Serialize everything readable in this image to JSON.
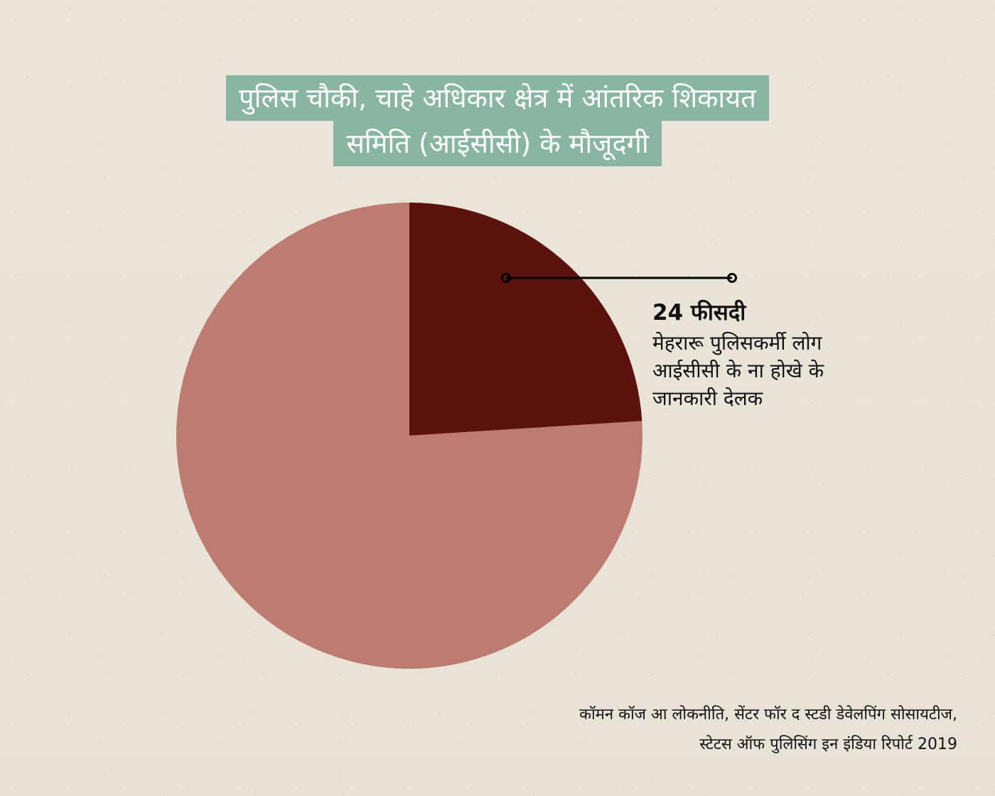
{
  "title": {
    "line1": "पुलिस चौकी, चाहे अधिकार क्षेत्र में आंतरिक शिकायत",
    "line2": "समिति (आईसीसी) के मौजूदगी"
  },
  "chart_data": {
    "type": "pie",
    "title": "पुलिस चौकी, चाहे अधिकार क्षेत्र में आंतरिक शिकायत समिति (आईसीसी) के मौजूदगी",
    "slices": [
      {
        "value": 24,
        "label": "24 फीसदी",
        "description": "मेहरारू पुलिसकर्मी लोग आईसीसी के ना होखे के जानकारी देलक",
        "color": "#5b120c"
      },
      {
        "value": 76,
        "color": "#bd7c71"
      }
    ],
    "legend": "none"
  },
  "annotation": {
    "value": "24 फीसदी",
    "text": " मेहरारू पुलिसकर्मी लोग आईसीसी के ना होखे के जानकारी देलक"
  },
  "source": {
    "line1": "कॉमन कॉज आ लोकनीति, सेंटर फॉर द स्टडी डेवेलपिंग सोसायटीज,",
    "line2": "स्टेटस ऑफ पुलिसिंग इन इंडिया रिपोर्ट 2019"
  }
}
